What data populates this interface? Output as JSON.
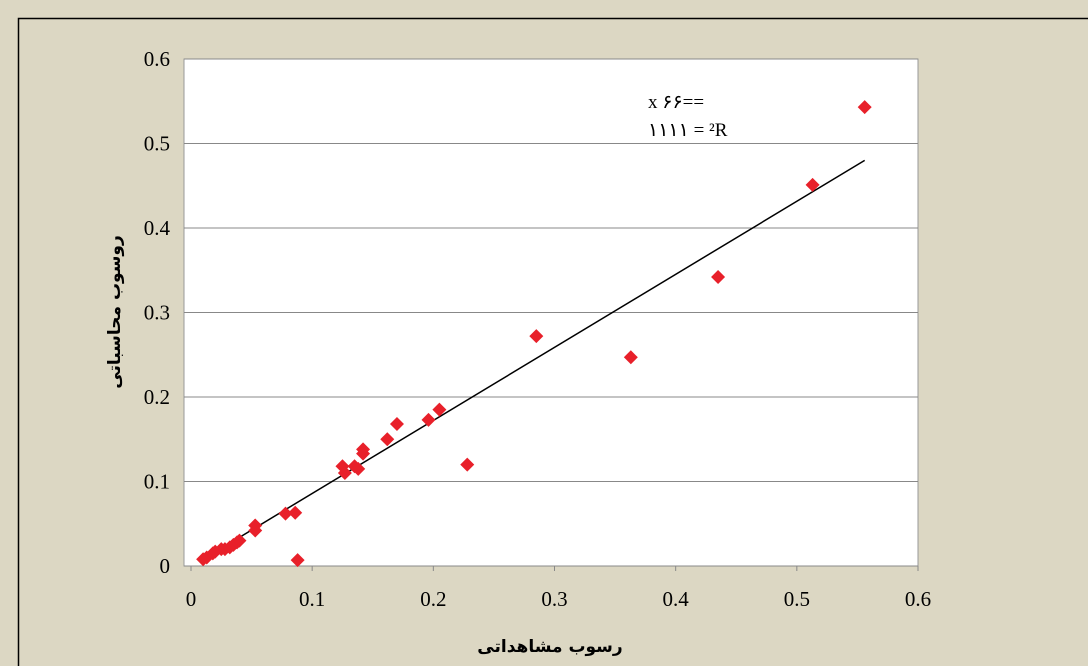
{
  "chart_data": {
    "type": "scatter",
    "x_label": "رسوب مشاهداتی",
    "y_label": "روسوب محاسباتی",
    "annotations": [
      "x ۶۶==",
      "۱۱۱۱ = ²R"
    ],
    "color": "#e8202a",
    "x": [
      0.01,
      0.013,
      0.018,
      0.02,
      0.025,
      0.028,
      0.032,
      0.035,
      0.038,
      0.04,
      0.053,
      0.053,
      0.078,
      0.086,
      0.088,
      0.125,
      0.127,
      0.135,
      0.138,
      0.142,
      0.142,
      0.162,
      0.17,
      0.196,
      0.205,
      0.228,
      0.285,
      0.363,
      0.435,
      0.513,
      0.556
    ],
    "values": [
      0.008,
      0.01,
      0.015,
      0.017,
      0.02,
      0.02,
      0.022,
      0.025,
      0.028,
      0.03,
      0.048,
      0.042,
      0.062,
      0.063,
      0.007,
      0.118,
      0.11,
      0.118,
      0.115,
      0.133,
      0.138,
      0.15,
      0.168,
      0.173,
      0.185,
      0.12,
      0.272,
      0.247,
      0.342,
      0.451,
      0.543
    ],
    "trendline": {
      "color": "#000000",
      "x": [
        0.01,
        0.556
      ],
      "y": [
        0.008,
        0.48
      ]
    },
    "xlim": [
      0,
      0.6
    ],
    "xticks": [
      0,
      0.1,
      0.2,
      0.3,
      0.4,
      0.5,
      0.6
    ],
    "ylim": [
      0,
      0.6
    ],
    "yticks": [
      0,
      0.1,
      0.2,
      0.3,
      0.4,
      0.5,
      0.6
    ],
    "grid": true
  }
}
